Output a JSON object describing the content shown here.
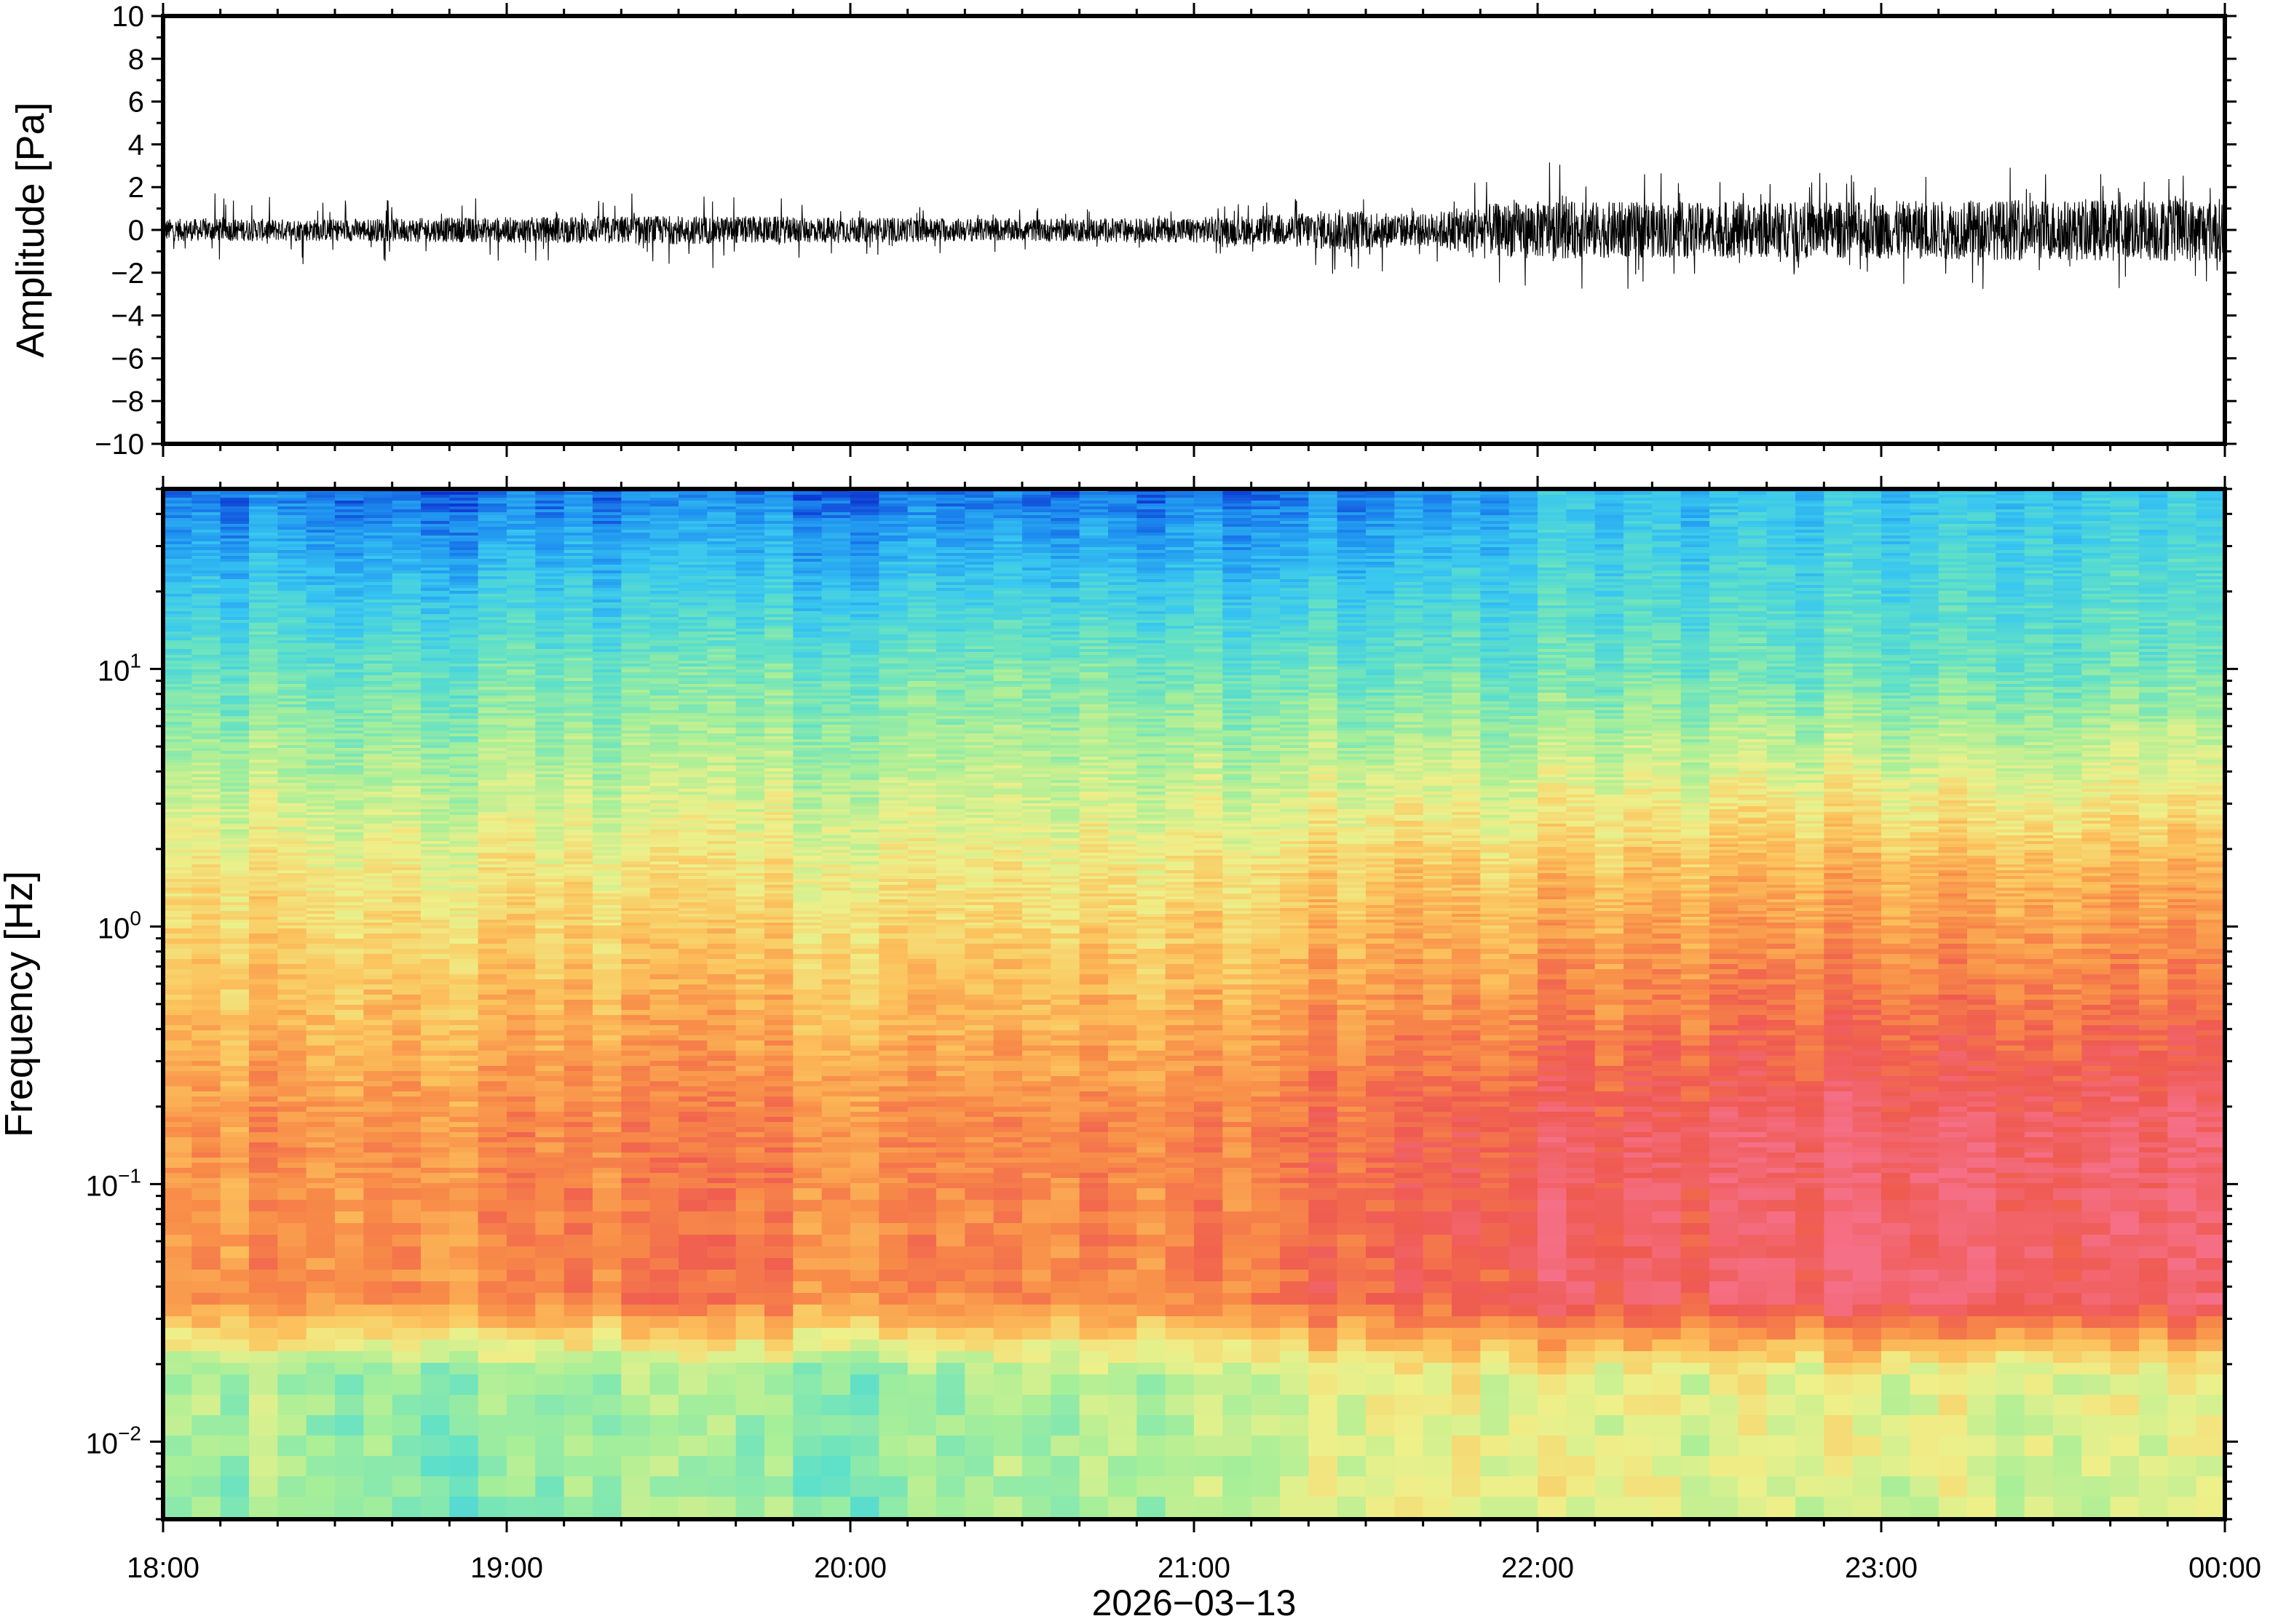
{
  "chart_data": [
    {
      "type": "line",
      "panel": "waveform",
      "ylabel": "Amplitude [Pa]",
      "ylim": [
        -10,
        10
      ],
      "y_ticks": [
        "10",
        "8",
        "6",
        "4",
        "2",
        "0",
        "−2",
        "−4",
        "−6",
        "−8",
        "−10"
      ],
      "x_ticks": [
        "18:00",
        "19:00",
        "20:00",
        "21:00",
        "22:00",
        "23:00",
        "00:00"
      ],
      "xlim": [
        "2026-03-13 18:00",
        "2026-03-14 00:00"
      ],
      "color": "#000000",
      "envelope": {
        "x": [
          "18:00",
          "18:30",
          "19:00",
          "19:30",
          "20:00",
          "20:30",
          "21:00",
          "21:15",
          "21:25",
          "21:40",
          "21:50",
          "22:00",
          "22:30",
          "23:00",
          "23:30",
          "00:00"
        ],
        "typical_peak": [
          0.7,
          0.7,
          0.8,
          0.9,
          0.8,
          0.7,
          0.8,
          1.0,
          1.3,
          1.0,
          1.6,
          1.8,
          1.7,
          1.8,
          1.9,
          2.0
        ],
        "max_spike": [
          1.8,
          1.6,
          1.5,
          2.0,
          1.2,
          1.0,
          1.2,
          1.4,
          2.5,
          1.6,
          2.5,
          3.2,
          2.6,
          2.8,
          3.0,
          2.8
        ]
      }
    },
    {
      "type": "heatmap",
      "panel": "spectrogram",
      "ylabel": "Frequency [Hz]",
      "y_scale": "log",
      "ylim": [
        0.005,
        50
      ],
      "y_ticks": [
        {
          "base": "10",
          "exp": "1",
          "value": 10
        },
        {
          "base": "10",
          "exp": "0",
          "value": 1
        },
        {
          "base": "10",
          "exp": "−1",
          "value": 0.1
        },
        {
          "base": "10",
          "exp": "−2",
          "value": 0.01
        }
      ],
      "x_ticks": [
        "18:00",
        "19:00",
        "20:00",
        "21:00",
        "22:00",
        "23:00",
        "00:00"
      ],
      "xlabel": "2026−03−13",
      "colormap": "rainbow (dark blue = low power, red/pink = high power)",
      "colors": [
        "#0b0f73",
        "#0a2fd0",
        "#1e90f0",
        "#38c7f0",
        "#5fe0c8",
        "#a8ef98",
        "#eef08a",
        "#fcc25c",
        "#f88c48",
        "#ef5a50",
        "#f56f86"
      ],
      "time_segments_min": [
        0,
        30,
        60,
        90,
        120,
        150,
        180,
        200,
        215,
        225,
        235,
        245,
        255,
        270,
        300,
        330,
        360
      ],
      "level_low_freq_band": [
        0.5,
        0.48,
        0.45,
        0.48,
        0.44,
        0.47,
        0.5,
        0.55,
        0.6,
        0.55,
        0.6,
        0.58,
        0.58,
        0.56,
        0.57,
        0.56,
        0.55
      ],
      "level_microbarom_band": [
        0.78,
        0.8,
        0.8,
        0.83,
        0.8,
        0.78,
        0.8,
        0.86,
        0.9,
        0.86,
        0.92,
        0.94,
        0.92,
        0.94,
        0.97,
        0.96,
        0.94
      ],
      "level_mid_band": [
        0.64,
        0.63,
        0.62,
        0.63,
        0.62,
        0.6,
        0.63,
        0.66,
        0.72,
        0.66,
        0.7,
        0.71,
        0.7,
        0.72,
        0.74,
        0.73,
        0.72
      ],
      "level_high_band": [
        0.18,
        0.18,
        0.16,
        0.18,
        0.16,
        0.14,
        0.16,
        0.18,
        0.22,
        0.18,
        0.26,
        0.3,
        0.28,
        0.28,
        0.3,
        0.32,
        0.3
      ]
    }
  ]
}
